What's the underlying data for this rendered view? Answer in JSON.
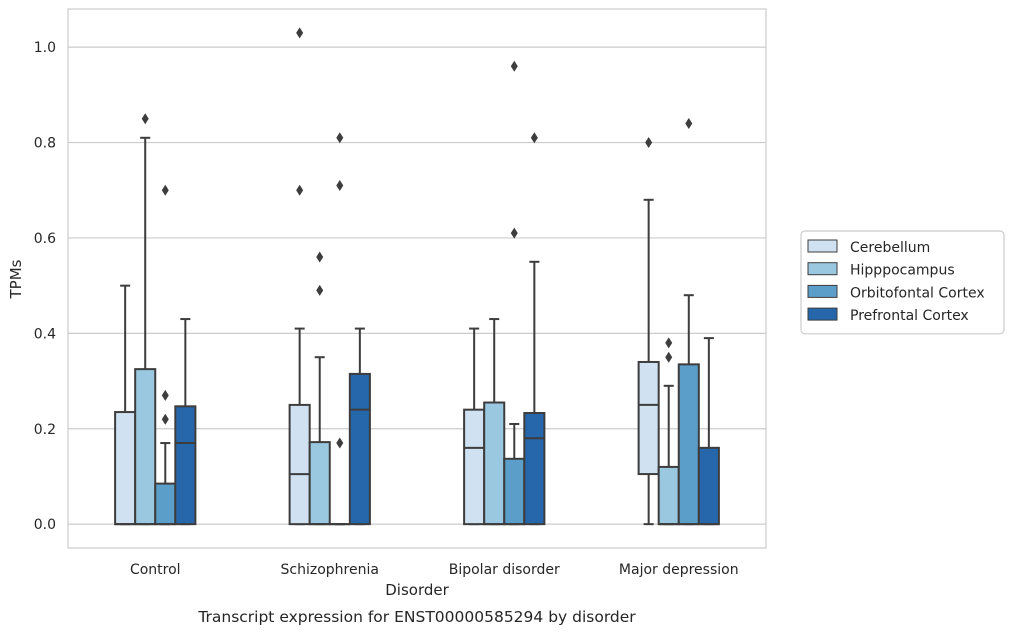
{
  "chart_data": {
    "type": "boxplot",
    "caption": "Transcript expression for ENST00000585294 by disorder",
    "xlabel": "Disorder",
    "ylabel": "TPMs",
    "ylim": [
      -0.05,
      1.08
    ],
    "yticks": [
      "0.0",
      "0.2",
      "0.4",
      "0.6",
      "0.8",
      "1.0"
    ],
    "grid": "horizontal",
    "legend_placement": "right",
    "categories": [
      "Control",
      "Schizophrenia",
      "Bipolar disorder",
      "Major depression"
    ],
    "series": [
      {
        "name": "Cerebellum",
        "color": "#d0e1f1",
        "boxes": [
          {
            "whisker_low": 0.0,
            "q1": 0.0,
            "median": 0.0,
            "q3": 0.235,
            "whisker_high": 0.5,
            "outliers": []
          },
          {
            "whisker_low": 0.0,
            "q1": 0.0,
            "median": 0.105,
            "q3": 0.25,
            "whisker_high": 0.41,
            "outliers": [
              0.7,
              1.03
            ]
          },
          {
            "whisker_low": 0.0,
            "q1": 0.0,
            "median": 0.16,
            "q3": 0.24,
            "whisker_high": 0.41,
            "outliers": []
          },
          {
            "whisker_low": 0.0,
            "q1": 0.105,
            "median": 0.25,
            "q3": 0.34,
            "whisker_high": 0.68,
            "outliers": [
              0.8
            ]
          }
        ]
      },
      {
        "name": "Hipppocampus",
        "color": "#9ac8e0",
        "boxes": [
          {
            "whisker_low": 0.0,
            "q1": 0.0,
            "median": 0.0,
            "q3": 0.325,
            "whisker_high": 0.81,
            "outliers": [
              0.85
            ]
          },
          {
            "whisker_low": 0.0,
            "q1": 0.0,
            "median": 0.0,
            "q3": 0.172,
            "whisker_high": 0.35,
            "outliers": [
              0.49,
              0.56
            ]
          },
          {
            "whisker_low": 0.0,
            "q1": 0.0,
            "median": 0.0,
            "q3": 0.255,
            "whisker_high": 0.43,
            "outliers": []
          },
          {
            "whisker_low": 0.0,
            "q1": 0.0,
            "median": 0.0,
            "q3": 0.12,
            "whisker_high": 0.29,
            "outliers": [
              0.35,
              0.38
            ]
          }
        ]
      },
      {
        "name": "Orbitofontal Cortex",
        "color": "#5a9ec9",
        "boxes": [
          {
            "whisker_low": 0.0,
            "q1": 0.0,
            "median": 0.0,
            "q3": 0.085,
            "whisker_high": 0.17,
            "outliers": [
              0.22,
              0.27,
              0.7
            ]
          },
          {
            "whisker_low": 0.0,
            "q1": 0.0,
            "median": 0.0,
            "q3": 0.0,
            "whisker_high": 0.0,
            "outliers": [
              0.17,
              0.71,
              0.81
            ]
          },
          {
            "whisker_low": 0.0,
            "q1": 0.0,
            "median": 0.0,
            "q3": 0.137,
            "whisker_high": 0.21,
            "outliers": [
              0.61,
              0.96
            ]
          },
          {
            "whisker_low": 0.0,
            "q1": 0.0,
            "median": 0.0,
            "q3": 0.335,
            "whisker_high": 0.48,
            "outliers": [
              0.84
            ]
          }
        ]
      },
      {
        "name": "Prefrontal Cortex",
        "color": "#2667ab",
        "boxes": [
          {
            "whisker_low": 0.0,
            "q1": 0.0,
            "median": 0.17,
            "q3": 0.247,
            "whisker_high": 0.43,
            "outliers": []
          },
          {
            "whisker_low": 0.0,
            "q1": 0.0,
            "median": 0.24,
            "q3": 0.315,
            "whisker_high": 0.41,
            "outliers": []
          },
          {
            "whisker_low": 0.0,
            "q1": 0.0,
            "median": 0.18,
            "q3": 0.233,
            "whisker_high": 0.55,
            "outliers": [
              0.81
            ]
          },
          {
            "whisker_low": 0.0,
            "q1": 0.0,
            "median": 0.0,
            "q3": 0.16,
            "whisker_high": 0.39,
            "outliers": []
          }
        ]
      }
    ]
  }
}
